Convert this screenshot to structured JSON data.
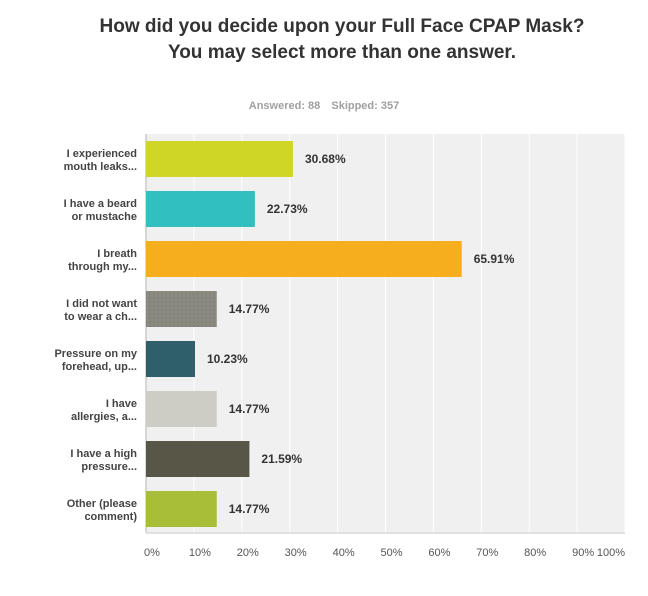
{
  "chart_data": {
    "type": "bar",
    "orientation": "horizontal",
    "title": "How did you decide upon your Full Face CPAP Mask? You may select more than one answer.",
    "answered": "Answered: 88",
    "skipped": "Skipped: 357",
    "categories": [
      [
        "I experienced",
        "mouth leaks..."
      ],
      [
        "I have a beard",
        "or mustache"
      ],
      [
        "I breath",
        "through my..."
      ],
      [
        "I did not want",
        "to wear a ch..."
      ],
      [
        "Pressure on my",
        "forehead, up..."
      ],
      [
        "I have",
        "allergies, a..."
      ],
      [
        "I have a high",
        "pressure..."
      ],
      [
        "Other (please",
        "comment)"
      ]
    ],
    "values": [
      30.68,
      22.73,
      65.91,
      14.77,
      10.23,
      14.77,
      21.59,
      14.77
    ],
    "value_labels": [
      "30.68%",
      "22.73%",
      "65.91%",
      "14.77%",
      "10.23%",
      "14.77%",
      "21.59%",
      "14.77%"
    ],
    "colors": [
      "#d0d626",
      "#32bfc0",
      "#f6ae1e",
      "#8a8a80",
      "#2e5f6b",
      "#cdcdc5",
      "#575647",
      "#a8bd38"
    ],
    "patterned": [
      false,
      false,
      false,
      true,
      false,
      false,
      false,
      false
    ],
    "xlim": [
      0,
      100
    ],
    "xticks": [
      "0%",
      "10%",
      "20%",
      "30%",
      "40%",
      "50%",
      "60%",
      "70%",
      "80%",
      "90%",
      "100%"
    ],
    "grid": true,
    "background": "#f0f0f0"
  }
}
